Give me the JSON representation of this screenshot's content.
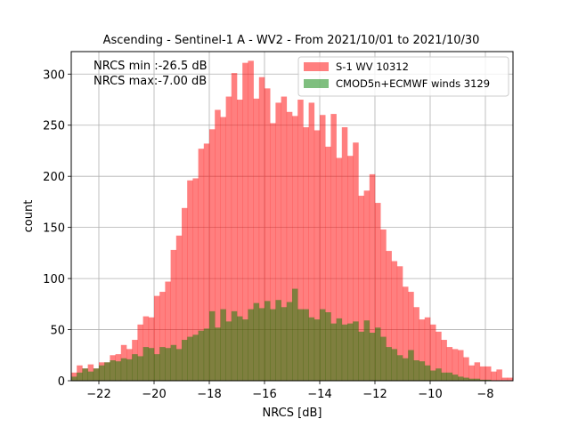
{
  "chart_data": {
    "type": "bar",
    "title": "Ascending - Sentinel-1 A - WV2 - From 2021/10/01 to 2021/10/30",
    "xlabel": "NRCS [dB]",
    "ylabel": "count",
    "xlim": [
      -23,
      -7
    ],
    "ylim": [
      0,
      322
    ],
    "xticks": [
      -22,
      -20,
      -18,
      -16,
      -14,
      -12,
      -10,
      -8
    ],
    "yticks": [
      0,
      50,
      100,
      150,
      200,
      250,
      300
    ],
    "xtick_labels": [
      "−22",
      "−20",
      "−18",
      "−16",
      "−14",
      "−12",
      "−10",
      "−8"
    ],
    "ytick_labels": [
      "0",
      "50",
      "100",
      "150",
      "200",
      "250",
      "300"
    ],
    "grid": true,
    "legend_position": "upper right",
    "annotations": [
      "NRCS min :-26.5 dB",
      "NRCS max:-7.00 dB"
    ],
    "bin_start": -23,
    "bin_width": 0.2,
    "series": [
      {
        "name": "S-1 WV 10312",
        "color": "#ff0000",
        "alpha": 0.5,
        "values": [
          8,
          15,
          12,
          16,
          12,
          18,
          18,
          25,
          26,
          35,
          31,
          40,
          55,
          63,
          62,
          83,
          87,
          97,
          128,
          142,
          169,
          196,
          198,
          227,
          232,
          246,
          265,
          258,
          278,
          301,
          275,
          311,
          313,
          276,
          297,
          286,
          252,
          272,
          278,
          263,
          259,
          275,
          248,
          272,
          245,
          260,
          229,
          261,
          218,
          248,
          220,
          233,
          181,
          186,
          202,
          174,
          148,
          127,
          117,
          112,
          92,
          87,
          72,
          60,
          62,
          55,
          48,
          40,
          33,
          31,
          30,
          23,
          15,
          18,
          14,
          14,
          9,
          11,
          3,
          3
        ],
        "values_note": ""
      },
      {
        "name": "CMOD5n+ECMWF winds 3129",
        "color": "#008000",
        "alpha": 0.5,
        "values": [
          4,
          8,
          12,
          9,
          12,
          15,
          18,
          20,
          19,
          22,
          21,
          26,
          24,
          33,
          32,
          26,
          33,
          32,
          35,
          31,
          40,
          43,
          45,
          49,
          51,
          68,
          52,
          70,
          58,
          68,
          63,
          60,
          70,
          76,
          71,
          78,
          70,
          79,
          72,
          77,
          90,
          70,
          70,
          62,
          60,
          70,
          67,
          56,
          61,
          55,
          56,
          58,
          48,
          59,
          47,
          52,
          43,
          33,
          31,
          25,
          22,
          30,
          20,
          19,
          15,
          10,
          12,
          8,
          8,
          6,
          4,
          3,
          2,
          2,
          1,
          1,
          0,
          0,
          0,
          0
        ]
      }
    ]
  }
}
